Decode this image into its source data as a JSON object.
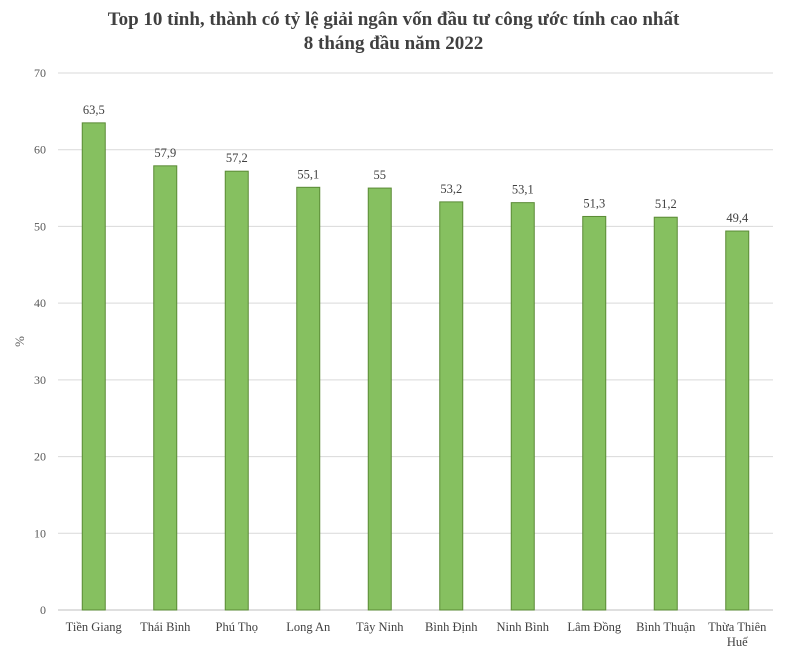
{
  "chart_data": {
    "type": "bar",
    "title_lines": [
      "Top 10 tỉnh, thành có tỷ lệ giải ngân vốn đầu tư công ước tính cao nhất",
      "8 tháng đầu năm 2022"
    ],
    "ylabel": "%",
    "ylim": [
      0,
      70
    ],
    "yticks": [
      0,
      10,
      20,
      30,
      40,
      50,
      60,
      70
    ],
    "grid": true,
    "categories": [
      "Tiền Giang",
      "Thái Bình",
      "Phú Thọ",
      "Long An",
      "Tây Ninh",
      "Bình Định",
      "Ninh Bình",
      "Lâm Đồng",
      "Bình Thuận",
      "Thừa Thiên Huế"
    ],
    "category_lines": [
      [
        "Tiền Giang"
      ],
      [
        "Thái Bình"
      ],
      [
        "Phú Thọ"
      ],
      [
        "Long An"
      ],
      [
        "Tây Ninh"
      ],
      [
        "Bình Định"
      ],
      [
        "Ninh Bình"
      ],
      [
        "Lâm Đồng"
      ],
      [
        "Bình Thuận"
      ],
      [
        "Thừa Thiên",
        "Huế"
      ]
    ],
    "values": [
      63.5,
      57.9,
      57.2,
      55.1,
      55,
      53.2,
      53.1,
      51.3,
      51.2,
      49.4
    ],
    "value_labels": [
      "63,5",
      "57,9",
      "57,2",
      "55,1",
      "55",
      "53,2",
      "53,1",
      "51,3",
      "51,2",
      "49,4"
    ],
    "bar_color": "#86c060",
    "bar_edge_color": "#5a8a35",
    "grid_color": "#d9d9d9"
  }
}
